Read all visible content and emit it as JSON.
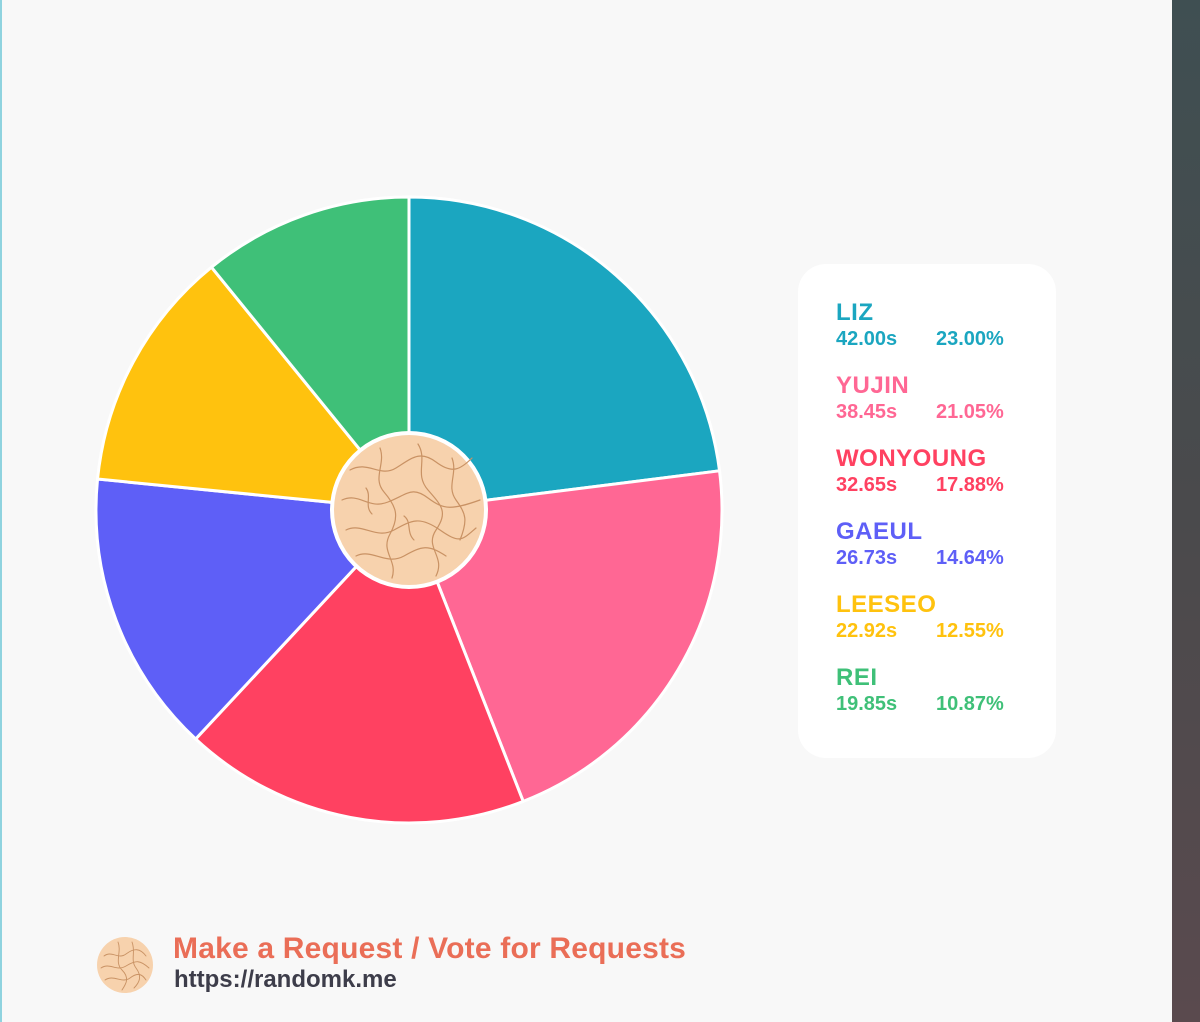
{
  "chart_data": {
    "type": "pie",
    "title": "",
    "labels": [
      "LIZ",
      "YUJIN",
      "WONYOUNG",
      "GAEUL",
      "LEESEO",
      "REI"
    ],
    "times": [
      "42.00s",
      "38.45s",
      "32.65s",
      "26.73s",
      "22.92s",
      "19.85s"
    ],
    "percent_labels": [
      "23.00%",
      "21.05%",
      "17.88%",
      "14.64%",
      "12.55%",
      "10.87%"
    ],
    "values": [
      23.0,
      21.05,
      17.88,
      14.64,
      12.55,
      10.87
    ],
    "colors": [
      "#1ba6c0",
      "#ff6794",
      "#ff4161",
      "#5e5ff7",
      "#ffc20e",
      "#3fc078"
    ],
    "legend_position": "right"
  },
  "colors": {
    "center_fill": "#f7d2ad",
    "center_line": "#c99264",
    "footer_accent": "#ea6e57"
  },
  "footer": {
    "title": "Make a Request / Vote for Requests",
    "url": "https://randomk.me"
  }
}
